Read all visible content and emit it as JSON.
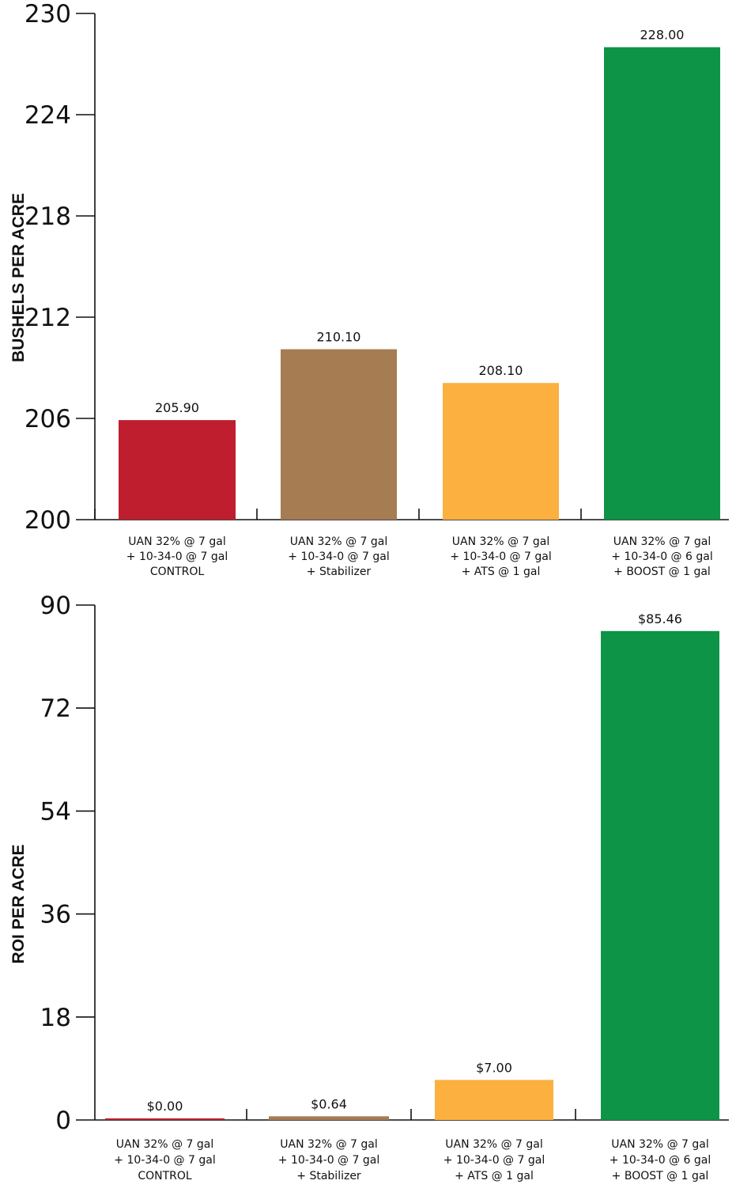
{
  "chart_data": [
    {
      "type": "bar",
      "categories": [
        [
          "UAN 32% @ 7 gal",
          "+ 10-34-0 @ 7 gal",
          "CONTROL"
        ],
        [
          "UAN 32% @ 7 gal",
          "+ 10-34-0 @ 7 gal",
          "+ Stabilizer"
        ],
        [
          "UAN 32% @ 7 gal",
          "+ 10-34-0 @ 7 gal",
          "+ ATS @ 1 gal"
        ],
        [
          "UAN 32% @ 7 gal",
          "+ 10-34-0 @ 6 gal",
          "+ BOOST  @ 1 gal"
        ]
      ],
      "values": [
        205.9,
        210.1,
        208.1,
        228.0
      ],
      "value_labels": [
        "205.90",
        "210.10",
        "208.10",
        "228.00"
      ],
      "colors": [
        "#be1e2d",
        "#a67c52",
        "#fbb040",
        "#0e9447"
      ],
      "ylabel": "BUSHELS PER ACRE",
      "xlabel": "",
      "ylim": [
        200,
        230
      ],
      "yticks": [
        200,
        206,
        212,
        218,
        224,
        230
      ],
      "grid": false
    },
    {
      "type": "bar",
      "categories": [
        [
          "UAN 32% @ 7 gal",
          "+ 10-34-0 @ 7 gal",
          "CONTROL"
        ],
        [
          "UAN 32% @ 7 gal",
          "+ 10-34-0 @ 7 gal",
          "+ Stabilizer"
        ],
        [
          "UAN 32% @ 7 gal",
          "+ 10-34-0 @ 7 gal",
          "+ ATS @ 1 gal"
        ],
        [
          "UAN 32% @ 7 gal",
          "+ 10-34-0 @ 6 gal",
          "+ BOOST  @ 1 gal"
        ]
      ],
      "values": [
        0.0,
        0.64,
        7.0,
        85.46
      ],
      "value_labels": [
        "$0.00",
        "$0.64",
        "$7.00",
        "$85.46"
      ],
      "colors": [
        "#be1e2d",
        "#a67c52",
        "#fbb040",
        "#0e9447"
      ],
      "ylabel": "ROI PER ACRE",
      "xlabel": "",
      "ylim": [
        0,
        90
      ],
      "yticks": [
        0,
        18,
        36,
        54,
        72,
        90
      ],
      "grid": false
    }
  ]
}
